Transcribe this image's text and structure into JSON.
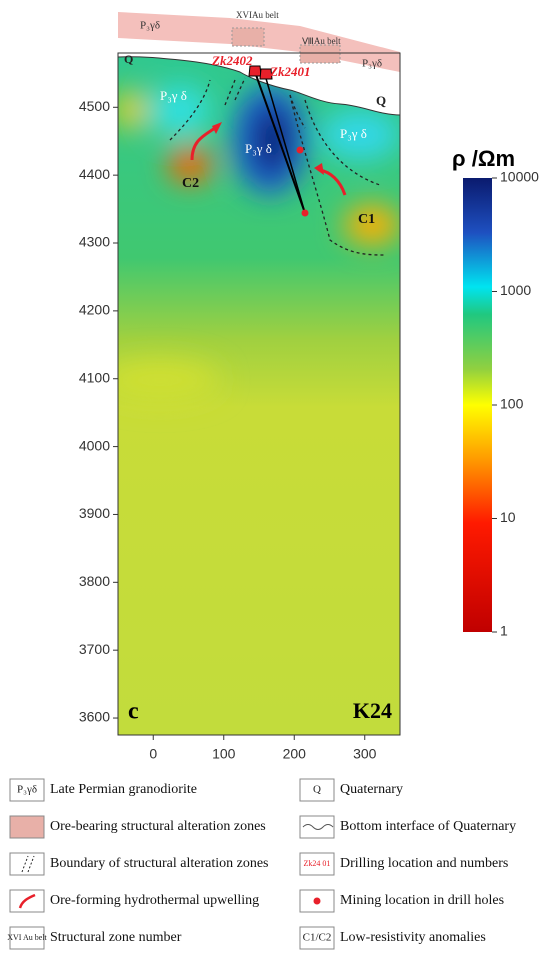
{
  "chart_data": {
    "type": "resistivity-section",
    "xlim": [
      -50,
      350
    ],
    "ylim": [
      3575,
      4580
    ],
    "xticks": [
      0,
      100,
      200,
      300
    ],
    "yticks": [
      3600,
      3700,
      3800,
      3900,
      4000,
      4100,
      4200,
      4300,
      4400,
      4500
    ],
    "colorbar": {
      "title": "ρ /Ωm",
      "lim": [
        1,
        10000
      ],
      "ticks": [
        1,
        10,
        100,
        1000,
        10000
      ],
      "log": true
    },
    "panel_label": "c",
    "section": "K24",
    "annotations": [
      "P₃γδ",
      "XVIAu belt",
      "ⅧAu belt",
      "P₃γδ",
      "Q",
      "Zk2402",
      "Zk2401",
      "P₃γ δ",
      "P₃γ δ",
      "P₃γ δ",
      "Q",
      "C2",
      "C1"
    ],
    "legend": [
      {
        "symbol": "P₃γδ",
        "text": "Late Permian granodiorite"
      },
      {
        "text": "Ore-bearing structural alteration zones"
      },
      {
        "text": "Boundary of structural alteration zones"
      },
      {
        "text": "Ore-forming hydrothermal upwelling"
      },
      {
        "symbol": "XVI Au belt",
        "text": "Structural zone number"
      },
      {
        "symbol": "Q",
        "text": "Quaternary"
      },
      {
        "text": "Bottom interface of  Quaternary"
      },
      {
        "symbol": "Zk24 01",
        "text": "Drilling location and numbers"
      },
      {
        "text": "Mining location in drill holes"
      },
      {
        "symbol": "C1/C2",
        "text": "Low-resistivity anomalies"
      }
    ]
  }
}
